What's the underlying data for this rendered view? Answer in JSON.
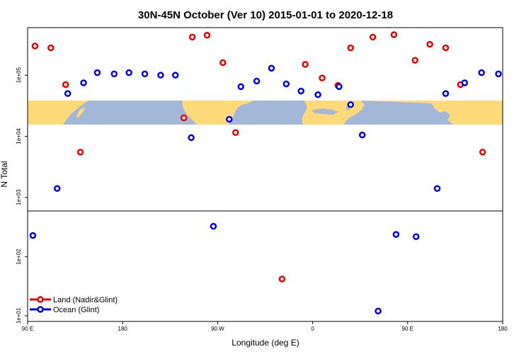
{
  "chart_data": {
    "type": "scatter",
    "title": "30N-45N October (Ver 10)   2015-01-01 to 2020-12-18",
    "xlabel": "Longitude (deg E)",
    "ylabel": "N Total",
    "x_ticks": [
      {
        "value": 90,
        "label": "90 E"
      },
      {
        "value": 180,
        "label": "180"
      },
      {
        "value": 270,
        "label": "90 W"
      },
      {
        "value": 360,
        "label": "0"
      },
      {
        "value": 450,
        "label": "90 E"
      },
      {
        "value": 540,
        "label": "180"
      }
    ],
    "xlim": [
      90,
      540
    ],
    "upper_panel": {
      "scale": "log10",
      "ylim": [
        600,
        600000
      ],
      "y_ticks": [
        {
          "value": 1000,
          "label": "1e+03"
        },
        {
          "value": 10000,
          "label": "1e+04"
        },
        {
          "value": 100000,
          "label": "1e+05"
        }
      ]
    },
    "lower_panel": {
      "scale": "log10",
      "ylim": [
        8,
        600
      ],
      "y_ticks": [
        {
          "value": 10,
          "label": "1e+01"
        },
        {
          "value": 100,
          "label": "1e+02"
        }
      ]
    },
    "legend": {
      "position": "bottom-left",
      "entries": [
        {
          "name": "Land (Nadir&Glint)",
          "color": "#ee0000"
        },
        {
          "name": "Ocean (Glint)",
          "color": "#0000ee"
        }
      ]
    },
    "series": [
      {
        "name": "Land (Nadir&Glint)",
        "color": "#ee0000",
        "points": [
          {
            "x": 97,
            "y": 300000
          },
          {
            "x": 112,
            "y": 280000
          },
          {
            "x": 126,
            "y": 70000
          },
          {
            "x": 140,
            "y": 5500
          },
          {
            "x": 238,
            "y": 20000
          },
          {
            "x": 246,
            "y": 420000
          },
          {
            "x": 260,
            "y": 450000
          },
          {
            "x": 275,
            "y": 160000
          },
          {
            "x": 287,
            "y": 11500
          },
          {
            "x": 331,
            "y": 42
          },
          {
            "x": 353,
            "y": 150000
          },
          {
            "x": 369,
            "y": 90000
          },
          {
            "x": 384,
            "y": 68000
          },
          {
            "x": 396,
            "y": 280000
          },
          {
            "x": 417,
            "y": 420000
          },
          {
            "x": 437,
            "y": 460000
          },
          {
            "x": 457,
            "y": 175000
          },
          {
            "x": 471,
            "y": 320000
          },
          {
            "x": 486,
            "y": 280000
          },
          {
            "x": 500,
            "y": 70000
          },
          {
            "x": 521,
            "y": 5500
          }
        ]
      },
      {
        "name": "Ocean (Glint)",
        "color": "#0000ee",
        "points": [
          {
            "x": 95,
            "y": 230
          },
          {
            "x": 118,
            "y": 1400
          },
          {
            "x": 128,
            "y": 50000
          },
          {
            "x": 143,
            "y": 75000
          },
          {
            "x": 156,
            "y": 110000
          },
          {
            "x": 172,
            "y": 105000
          },
          {
            "x": 186,
            "y": 110000
          },
          {
            "x": 201,
            "y": 105000
          },
          {
            "x": 216,
            "y": 100000
          },
          {
            "x": 230,
            "y": 100000
          },
          {
            "x": 245,
            "y": 9500
          },
          {
            "x": 266,
            "y": 330
          },
          {
            "x": 281,
            "y": 19000
          },
          {
            "x": 292,
            "y": 65000
          },
          {
            "x": 307,
            "y": 80000
          },
          {
            "x": 321,
            "y": 130000
          },
          {
            "x": 335,
            "y": 72000
          },
          {
            "x": 349,
            "y": 55000
          },
          {
            "x": 365,
            "y": 48000
          },
          {
            "x": 385,
            "y": 65000
          },
          {
            "x": 396,
            "y": 33000
          },
          {
            "x": 407,
            "y": 10500
          },
          {
            "x": 422,
            "y": 12
          },
          {
            "x": 439,
            "y": 240
          },
          {
            "x": 458,
            "y": 220
          },
          {
            "x": 478,
            "y": 1400
          },
          {
            "x": 486,
            "y": 50000
          },
          {
            "x": 504,
            "y": 75000
          },
          {
            "x": 520,
            "y": 110000
          },
          {
            "x": 536,
            "y": 105000
          }
        ]
      }
    ]
  }
}
